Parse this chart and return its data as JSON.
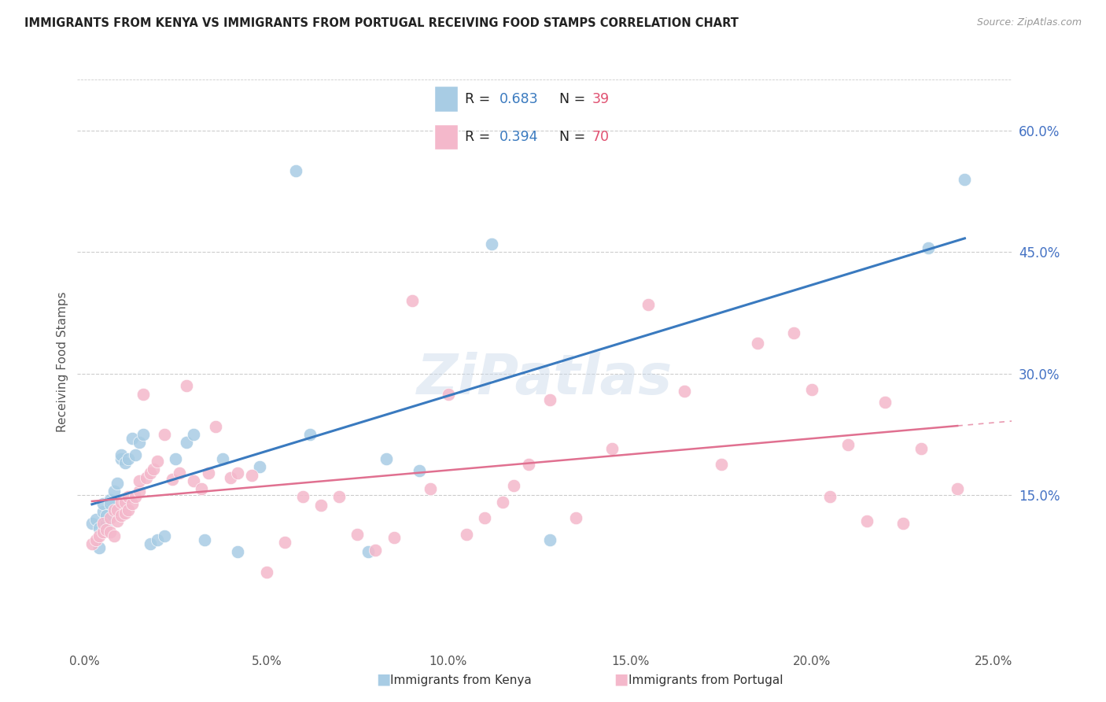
{
  "title": "IMMIGRANTS FROM KENYA VS IMMIGRANTS FROM PORTUGAL RECEIVING FOOD STAMPS CORRELATION CHART",
  "source": "Source: ZipAtlas.com",
  "ylabel": "Receiving Food Stamps",
  "xlim": [
    -0.002,
    0.255
  ],
  "ylim": [
    -0.04,
    0.67
  ],
  "xticks": [
    0.0,
    0.05,
    0.1,
    0.15,
    0.2,
    0.25
  ],
  "xtick_labels": [
    "0.0%",
    "5.0%",
    "10.0%",
    "15.0%",
    "20.0%",
    "25.0%"
  ],
  "yticks": [
    0.15,
    0.3,
    0.45,
    0.6
  ],
  "ytick_labels": [
    "15.0%",
    "30.0%",
    "45.0%",
    "60.0%"
  ],
  "kenya_R": 0.683,
  "kenya_N": 39,
  "portugal_R": 0.394,
  "portugal_N": 70,
  "kenya_color": "#a8cce4",
  "portugal_color": "#f4b8cb",
  "kenya_line_color": "#3a7abf",
  "portugal_line_color": "#e07090",
  "watermark": "ZiPatlas",
  "kenya_scatter_x": [
    0.002,
    0.003,
    0.004,
    0.004,
    0.005,
    0.005,
    0.006,
    0.006,
    0.007,
    0.007,
    0.008,
    0.009,
    0.01,
    0.01,
    0.011,
    0.012,
    0.013,
    0.014,
    0.015,
    0.016,
    0.018,
    0.02,
    0.022,
    0.025,
    0.028,
    0.03,
    0.033,
    0.038,
    0.042,
    0.048,
    0.058,
    0.062,
    0.078,
    0.083,
    0.092,
    0.112,
    0.128,
    0.232,
    0.242
  ],
  "kenya_scatter_y": [
    0.115,
    0.12,
    0.085,
    0.11,
    0.13,
    0.14,
    0.115,
    0.125,
    0.145,
    0.14,
    0.155,
    0.165,
    0.195,
    0.2,
    0.19,
    0.195,
    0.22,
    0.2,
    0.215,
    0.225,
    0.09,
    0.095,
    0.1,
    0.195,
    0.215,
    0.225,
    0.095,
    0.195,
    0.08,
    0.185,
    0.55,
    0.225,
    0.08,
    0.195,
    0.18,
    0.46,
    0.095,
    0.455,
    0.54
  ],
  "portugal_scatter_x": [
    0.002,
    0.003,
    0.004,
    0.005,
    0.005,
    0.006,
    0.007,
    0.007,
    0.008,
    0.008,
    0.009,
    0.009,
    0.01,
    0.01,
    0.011,
    0.011,
    0.012,
    0.012,
    0.013,
    0.014,
    0.015,
    0.015,
    0.016,
    0.017,
    0.018,
    0.019,
    0.02,
    0.022,
    0.024,
    0.026,
    0.028,
    0.03,
    0.032,
    0.034,
    0.036,
    0.04,
    0.042,
    0.046,
    0.05,
    0.055,
    0.06,
    0.065,
    0.07,
    0.075,
    0.08,
    0.085,
    0.09,
    0.095,
    0.1,
    0.105,
    0.11,
    0.115,
    0.118,
    0.122,
    0.128,
    0.135,
    0.145,
    0.155,
    0.165,
    0.175,
    0.185,
    0.195,
    0.2,
    0.205,
    0.21,
    0.215,
    0.22,
    0.225,
    0.23,
    0.24
  ],
  "portugal_scatter_y": [
    0.09,
    0.095,
    0.1,
    0.105,
    0.115,
    0.108,
    0.122,
    0.105,
    0.1,
    0.132,
    0.118,
    0.132,
    0.125,
    0.142,
    0.128,
    0.142,
    0.132,
    0.148,
    0.14,
    0.148,
    0.155,
    0.168,
    0.275,
    0.172,
    0.178,
    0.182,
    0.192,
    0.225,
    0.17,
    0.178,
    0.285,
    0.168,
    0.158,
    0.178,
    0.235,
    0.172,
    0.178,
    0.175,
    0.055,
    0.092,
    0.148,
    0.138,
    0.148,
    0.102,
    0.082,
    0.098,
    0.39,
    0.158,
    0.275,
    0.102,
    0.122,
    0.142,
    0.162,
    0.188,
    0.268,
    0.122,
    0.208,
    0.385,
    0.278,
    0.188,
    0.338,
    0.35,
    0.28,
    0.148,
    0.212,
    0.118,
    0.265,
    0.115,
    0.208,
    0.158
  ],
  "legend_R_color": "#3a7abf",
  "legend_N_color": "#e05070",
  "bottom_legend_kenya": "Immigrants from Kenya",
  "bottom_legend_portugal": "Immigrants from Portugal"
}
